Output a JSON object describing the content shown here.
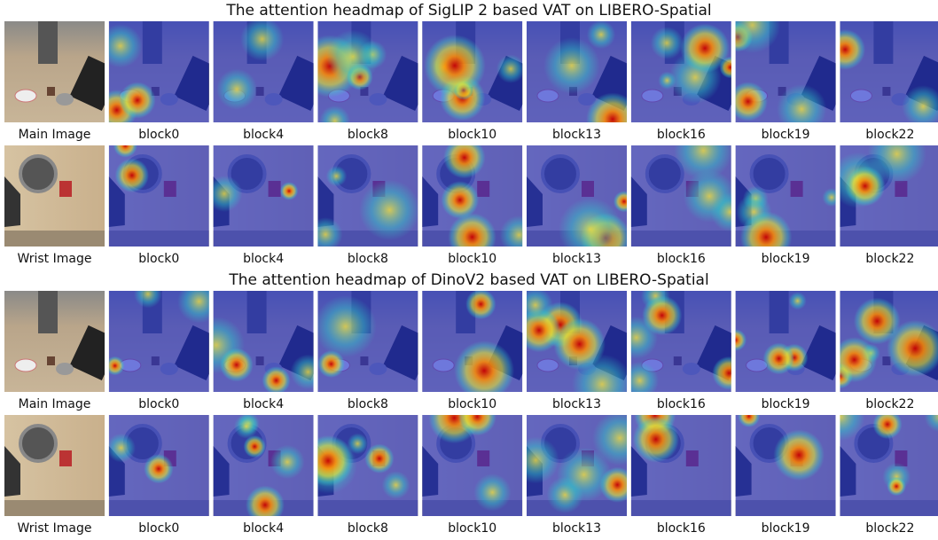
{
  "sections": [
    {
      "title": "The attention headmap of SigLIP 2 based VAT on LIBERO-Spatial",
      "rows": [
        {
          "captions": [
            "Main Image",
            "block0",
            "block4",
            "block8",
            "block10",
            "block13",
            "block16",
            "block19",
            "block22"
          ]
        },
        {
          "captions": [
            "Wrist Image",
            "block0",
            "block4",
            "block8",
            "block10",
            "block13",
            "block16",
            "block19",
            "block22"
          ]
        }
      ]
    },
    {
      "title": "The attention headmap of DinoV2 based VAT on LIBERO-Spatial",
      "rows": [
        {
          "captions": [
            "Main Image",
            "block0",
            "block4",
            "block8",
            "block10",
            "block13",
            "block16",
            "block19",
            "block22"
          ]
        },
        {
          "captions": [
            "Wrist Image",
            "block0",
            "block4",
            "block8",
            "block10",
            "block13",
            "block16",
            "block19",
            "block22"
          ]
        }
      ]
    }
  ]
}
